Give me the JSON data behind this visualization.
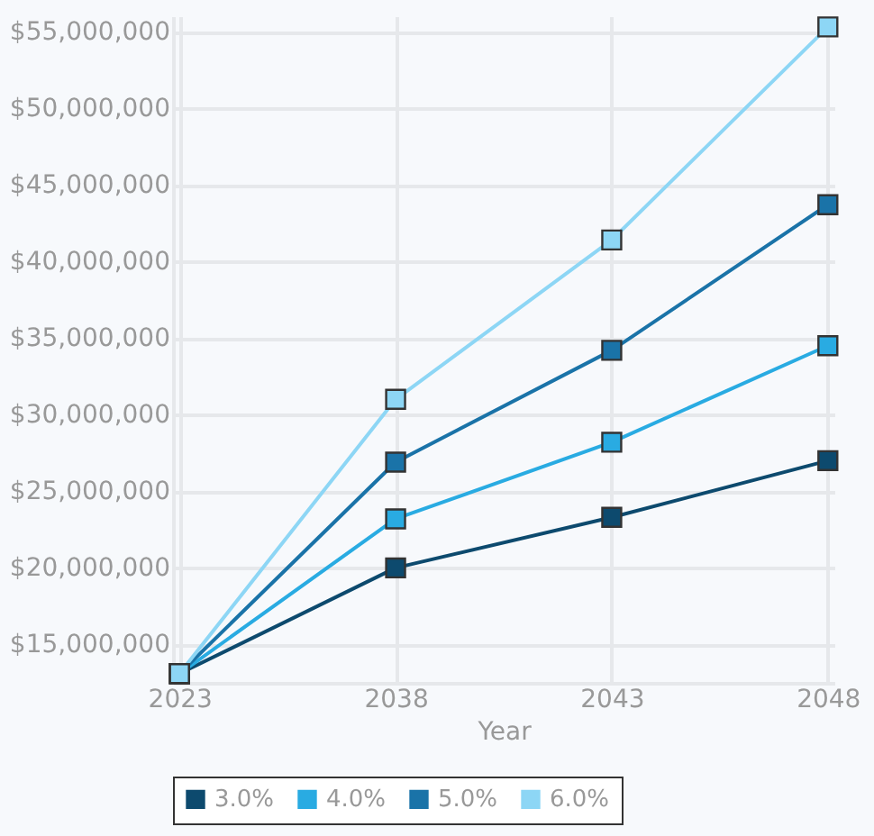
{
  "chart_data": {
    "type": "line",
    "xlabel": "Year",
    "categories": [
      "2023",
      "2038",
      "2043",
      "2048"
    ],
    "series": [
      {
        "name": "3.0%",
        "color": "#0d4a6e",
        "values": [
          13100000,
          20000000,
          23300000,
          27000000
        ]
      },
      {
        "name": "4.0%",
        "color": "#29abe2",
        "values": [
          13100000,
          23200000,
          28200000,
          34500000
        ]
      },
      {
        "name": "5.0%",
        "color": "#1a73a8",
        "values": [
          13100000,
          26900000,
          34200000,
          43700000
        ]
      },
      {
        "name": "6.0%",
        "color": "#8dd6f5",
        "values": [
          13100000,
          31000000,
          41400000,
          55300000
        ]
      }
    ],
    "ylim": [
      12500000,
      56000000
    ],
    "yticks": [
      {
        "value": 15000000,
        "label": "$15,000,000"
      },
      {
        "value": 20000000,
        "label": "$20,000,000"
      },
      {
        "value": 25000000,
        "label": "$25,000,000"
      },
      {
        "value": 30000000,
        "label": "$30,000,000"
      },
      {
        "value": 35000000,
        "label": "$35,000,000"
      },
      {
        "value": 40000000,
        "label": "$40,000,000"
      },
      {
        "value": 45000000,
        "label": "$45,000,000"
      },
      {
        "value": 50000000,
        "label": "$50,000,000"
      },
      {
        "value": 55000000,
        "label": "$55,000,000"
      }
    ],
    "grid": true,
    "legend": "bottom",
    "marker": "square",
    "line_style": "solid"
  }
}
